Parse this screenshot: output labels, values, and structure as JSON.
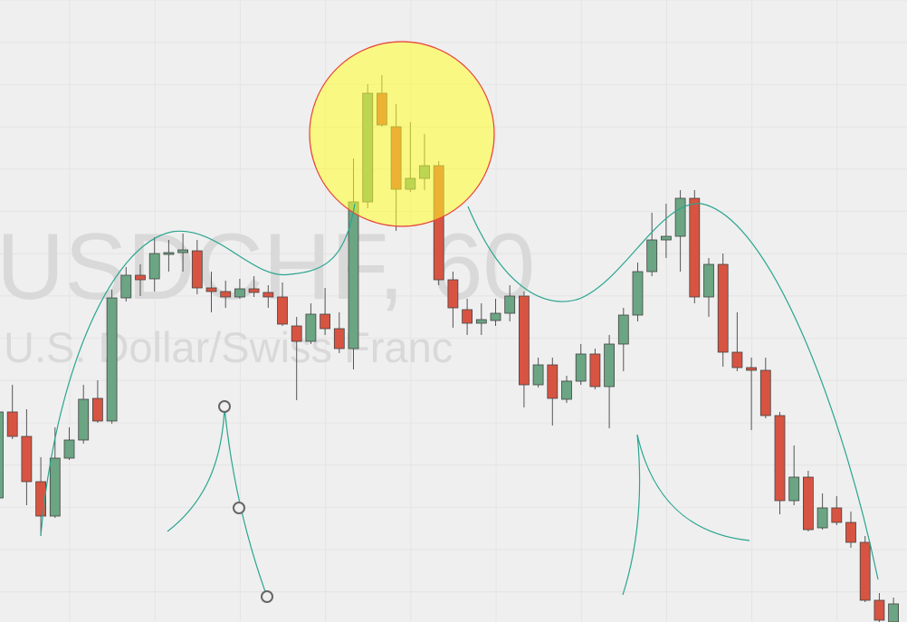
{
  "chart_data": {
    "type": "candlestick",
    "watermark_title": "USDCHF, 60",
    "watermark_subtitle": "U.S. Dollar/Swiss Franc",
    "up_color": "#6ba583",
    "down_color": "#d75442",
    "ylim": [
      0,
      687
    ],
    "open": [
      137,
      232,
      205,
      155,
      117,
      181,
      201,
      247,
      222,
      358,
      383,
      379,
      406,
      408,
      410,
      369,
      365,
      359,
      368,
      364,
      359,
      327,
      310,
      340,
      324,
      302,
      464,
      584,
      547,
      478,
      490,
      504,
      378,
      345,
      330,
      333,
      341,
      360,
      262,
      284,
      246,
      266,
      296,
      260,
      307,
      339,
      387,
      422,
      426,
      468,
      359,
      395,
      298,
      281,
      278,
      228,
      134,
      160,
      104,
      126,
      110,
      88,
      24,
      0
    ],
    "high": [
      237,
      262,
      235,
      182,
      215,
      215,
      262,
      267,
      367,
      392,
      395,
      425,
      422,
      429,
      422,
      387,
      377,
      379,
      382,
      372,
      375,
      337,
      352,
      369,
      342,
      512,
      594,
      604,
      572,
      552,
      539,
      509,
      387,
      357,
      352,
      357,
      372,
      365,
      292,
      292,
      272,
      307,
      302,
      317,
      347,
      397,
      452,
      462,
      477,
      477,
      402,
      407,
      342,
      292,
      292,
      232,
      195,
      167,
      142,
      139,
      122,
      95,
      32,
      27
    ],
    "low": [
      135,
      202,
      129,
      95,
      115,
      179,
      197,
      220,
      219,
      354,
      360,
      365,
      387,
      387,
      362,
      342,
      347,
      357,
      359,
      347,
      327,
      245,
      307,
      317,
      297,
      279,
      457,
      547,
      432,
      475,
      477,
      372,
      325,
      317,
      317,
      327,
      332,
      237,
      259,
      217,
      242,
      262,
      257,
      214,
      277,
      332,
      382,
      402,
      387,
      352,
      337,
      282,
      277,
      212,
      225,
      119,
      129,
      100,
      102,
      107,
      82,
      22,
      0,
      0
    ],
    "close": [
      232,
      205,
      155,
      117,
      181,
      201,
      246,
      222,
      358,
      383,
      378,
      407,
      408,
      411,
      369,
      365,
      359,
      368,
      364,
      359,
      329,
      310,
      340,
      324,
      302,
      464,
      584,
      549,
      478,
      490,
      504,
      378,
      347,
      330,
      334,
      341,
      360,
      262,
      284,
      247,
      266,
      296,
      260,
      307,
      339,
      387,
      422,
      426,
      468,
      359,
      395,
      298,
      281,
      278,
      228,
      134,
      160,
      102,
      126,
      110,
      88,
      24,
      2,
      20
    ]
  }
}
